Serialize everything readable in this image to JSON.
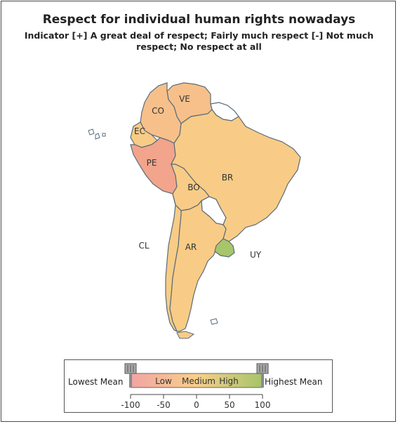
{
  "title": "Respect for individual human rights nowadays",
  "subtitle": "Indicator [+] A great deal of respect; Fairly much respect [-] Not much respect; No respect at all",
  "chart_data": {
    "type": "map",
    "region": "South America",
    "regions": [
      {
        "code": "VE",
        "label": "VE",
        "color": "#f7c08a",
        "level": "low-medium"
      },
      {
        "code": "CO",
        "label": "CO",
        "color": "#f7c08a",
        "level": "low-medium"
      },
      {
        "code": "EC",
        "label": "EC",
        "color": "#f8cc86",
        "level": "medium"
      },
      {
        "code": "PE",
        "label": "PE",
        "color": "#f2a48c",
        "level": "low"
      },
      {
        "code": "BR",
        "label": "BR",
        "color": "#f8cc86",
        "level": "medium"
      },
      {
        "code": "BO",
        "label": "BO",
        "color": "#f8cc86",
        "level": "medium"
      },
      {
        "code": "CL",
        "label": "CL",
        "color": "#f8cc86",
        "level": "medium"
      },
      {
        "code": "AR",
        "label": "AR",
        "color": "#f8cc86",
        "level": "medium"
      },
      {
        "code": "UY",
        "label": "UY",
        "color": "#a7c56b",
        "level": "high"
      }
    ],
    "no_data_color": "#ffffff",
    "legend": {
      "left_label": "Lowest Mean",
      "right_label": "Highest Mean",
      "scale_labels": [
        "Low",
        "Medium",
        "High"
      ],
      "ticks": [
        -100,
        -50,
        0,
        50,
        100
      ],
      "tick_labels": [
        "-100",
        "-50",
        "0",
        "50",
        "100"
      ],
      "colors": [
        "#f2a4a4",
        "#f8cf8a",
        "#a6c46a"
      ]
    }
  }
}
